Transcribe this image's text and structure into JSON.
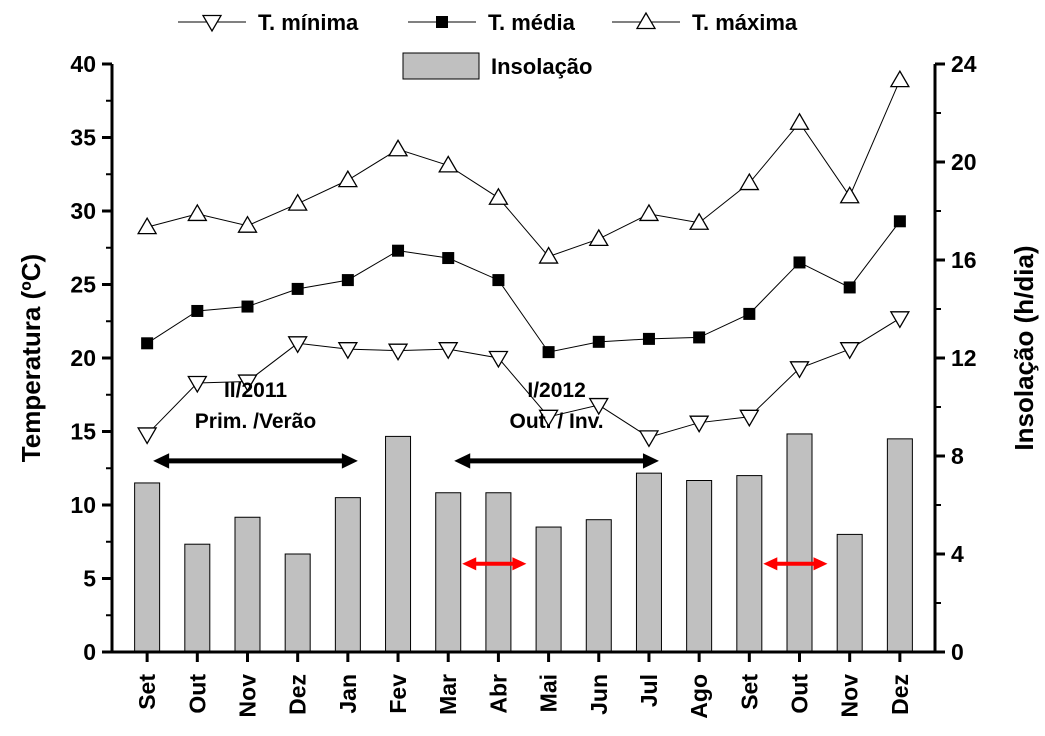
{
  "chart_data": {
    "type": "bar+line",
    "categories": [
      "Set",
      "Out",
      "Nov",
      "Dez",
      "Jan",
      "Fev",
      "Mar",
      "Abr",
      "Mai",
      "Jun",
      "Jul",
      "Ago",
      "Set",
      "Out",
      "Nov",
      "Dez"
    ],
    "bars": {
      "name": "Insolação",
      "axis": "right",
      "values": [
        6.9,
        4.4,
        5.5,
        4.0,
        6.3,
        8.8,
        6.5,
        6.5,
        5.1,
        5.4,
        7.3,
        7.0,
        7.2,
        8.9,
        4.8,
        8.7
      ],
      "color": "#c0c0c0"
    },
    "series": [
      {
        "name": "T. mínima",
        "marker": "triangle-down",
        "axis": "left",
        "values": [
          14.8,
          18.3,
          18.4,
          21.0,
          20.6,
          20.5,
          20.6,
          20.0,
          16.0,
          16.8,
          14.6,
          15.6,
          16.0,
          19.3,
          20.6,
          22.7
        ]
      },
      {
        "name": "T. média",
        "marker": "square",
        "axis": "left",
        "values": [
          21.0,
          23.2,
          23.5,
          24.7,
          25.3,
          27.3,
          26.8,
          25.3,
          20.4,
          21.1,
          21.3,
          21.4,
          23.0,
          26.5,
          24.8,
          29.3
        ]
      },
      {
        "name": "T. máxima",
        "marker": "triangle-up",
        "axis": "left",
        "values": [
          28.9,
          29.8,
          29.0,
          30.5,
          32.1,
          34.2,
          33.1,
          30.9,
          26.9,
          28.1,
          29.8,
          29.2,
          31.9,
          36.0,
          31.0,
          38.9
        ]
      }
    ],
    "ylabel": "Temperatura (ºC)",
    "ylabel_right": "Insolação (h/dia)",
    "ylim": [
      0,
      40
    ],
    "ylim_right": [
      0,
      24
    ],
    "yticks": [
      "0",
      "5",
      "10",
      "15",
      "20",
      "25",
      "30",
      "35",
      "40"
    ],
    "yticks_right": [
      "0",
      "4",
      "8",
      "12",
      "16",
      "20",
      "24"
    ],
    "legend": {
      "position": "top",
      "lines": [
        "T. mínima",
        "T. média",
        "T. máxima"
      ],
      "bars": "Insolação"
    },
    "annotations": [
      {
        "line1": "II/2011",
        "line2": "Prim. /Verão",
        "arrow_from": "Set",
        "arrow_to": "Jan",
        "arrow_y": 7.8,
        "color": "#000000"
      },
      {
        "line1": "I/2012",
        "line2": "Out. / Inv.",
        "arrow_from": "Mar",
        "arrow_to": "Jul",
        "arrow_y": 7.8,
        "color": "#000000"
      }
    ],
    "red_markers": [
      {
        "from": "Mar",
        "to": "Abr",
        "y": 3.6,
        "color": "#ff0000"
      },
      {
        "from": "Set",
        "to": "Out",
        "y": 3.6,
        "color": "#ff0000"
      }
    ]
  }
}
